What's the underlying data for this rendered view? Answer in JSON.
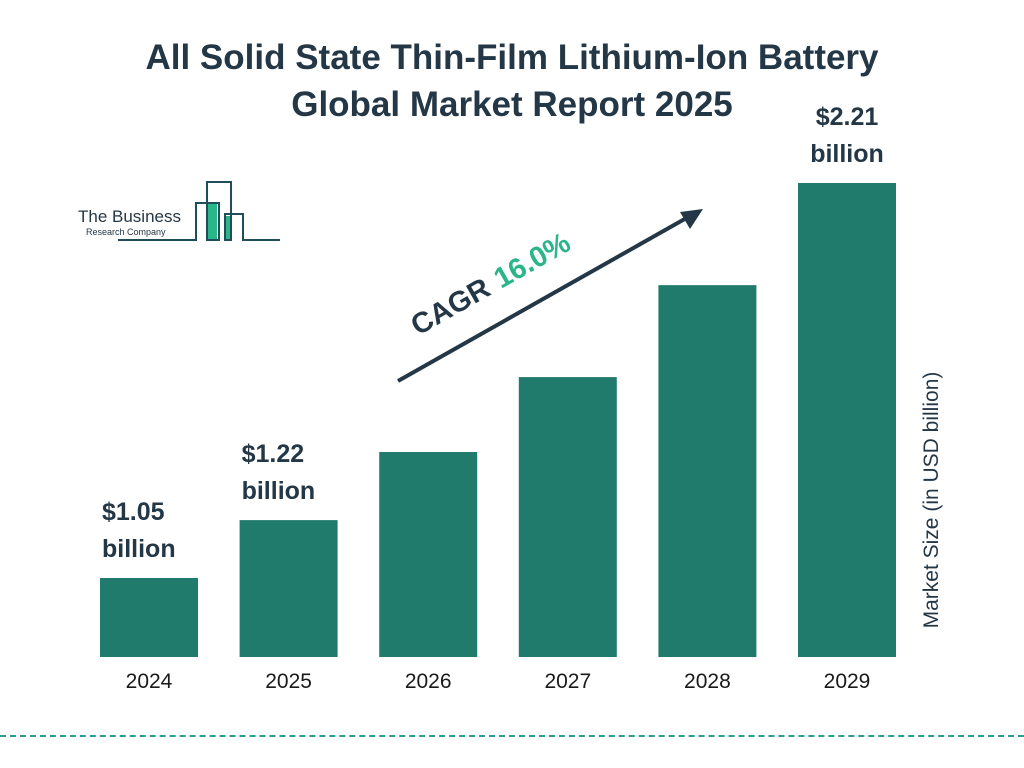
{
  "title": [
    "All Solid State Thin-Film Lithium-Ion Battery",
    "Global Market Report 2025"
  ],
  "logo": {
    "line1": "The Business",
    "line2": "Research Company",
    "colors": {
      "outline": "#1f4e5a",
      "fill": "#2bb58a"
    }
  },
  "chart_data": {
    "type": "bar",
    "title": "All Solid State Thin-Film Lithium-Ion Battery Global Market Report 2025",
    "categories": [
      "2024",
      "2025",
      "2026",
      "2027",
      "2028",
      "2029"
    ],
    "values": [
      1.05,
      1.22,
      1.42,
      1.64,
      1.91,
      2.21
    ],
    "data_labels": [
      [
        "$1.05",
        "billion"
      ],
      [
        "$1.22",
        "billion"
      ],
      null,
      null,
      null,
      [
        "$2.21",
        "billion"
      ]
    ],
    "ylabel": "Market Size (in USD billion)",
    "xlabel": "",
    "grid": false,
    "bar_color": "#217b6c",
    "annotation": {
      "prefix": "CAGR",
      "value": "16.0%",
      "prefix_color": "#243746",
      "value_color": "#2bb58a"
    }
  }
}
